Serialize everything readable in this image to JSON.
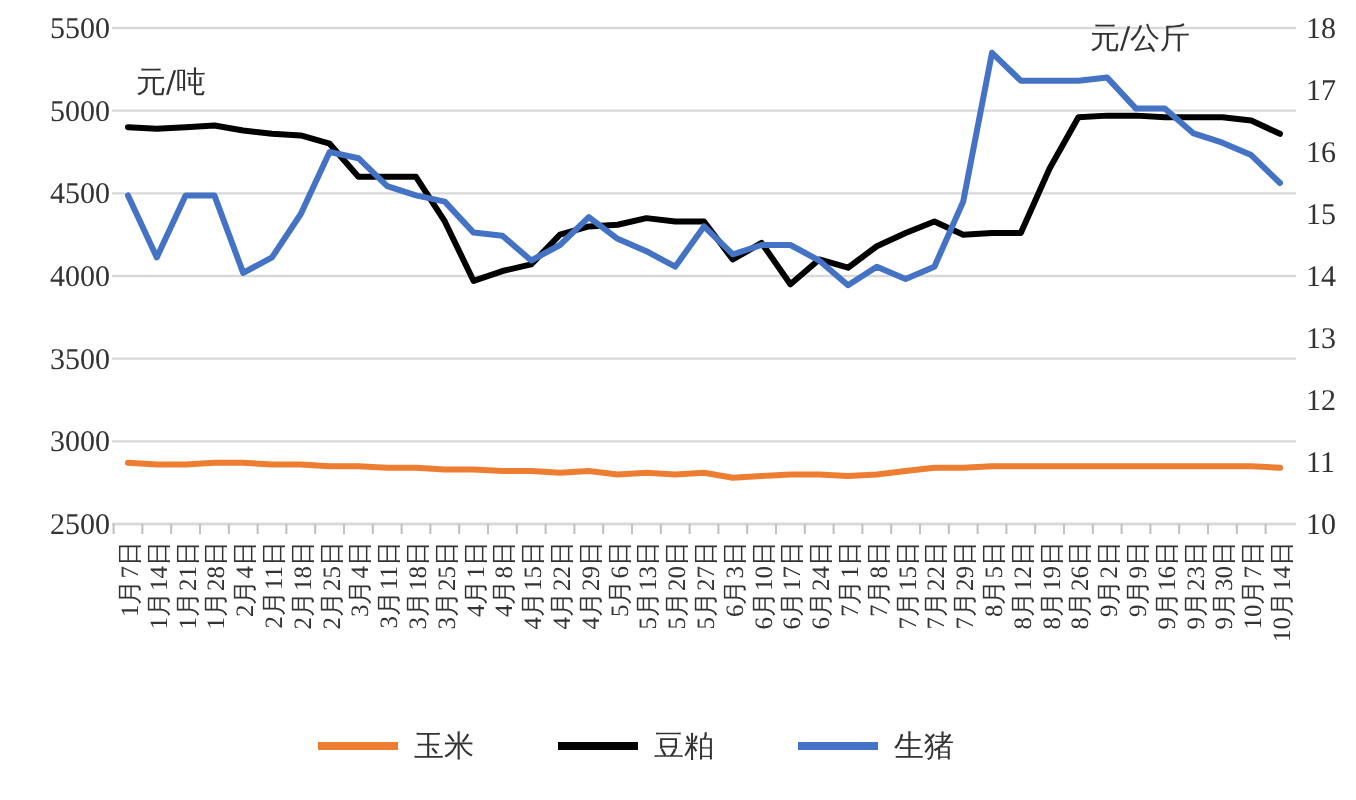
{
  "chart_data": {
    "type": "line",
    "ylabel": "元/吨",
    "y2label": "元/公斤",
    "categories": [
      "1月7日",
      "1月14日",
      "1月21日",
      "1月28日",
      "2月4日",
      "2月11日",
      "2月18日",
      "2月25日",
      "3月4日",
      "3月11日",
      "3月18日",
      "3月25日",
      "4月1日",
      "4月8日",
      "4月15日",
      "4月22日",
      "4月29日",
      "5月6日",
      "5月13日",
      "5月20日",
      "5月27日",
      "6月3日",
      "6月10日",
      "6月17日",
      "6月24日",
      "7月1日",
      "7月8日",
      "7月15日",
      "7月22日",
      "7月29日",
      "8月5日",
      "8月12日",
      "8月19日",
      "8月26日",
      "9月2日",
      "9月9日",
      "9月16日",
      "9月23日",
      "9月30日",
      "10月7日",
      "10月14日"
    ],
    "series": [
      {
        "name": "玉米",
        "color": "#ed7d31",
        "values": [
          2870,
          2860,
          2860,
          2870,
          2870,
          2860,
          2860,
          2850,
          2850,
          2840,
          2840,
          2830,
          2830,
          2820,
          2820,
          2810,
          2820,
          2800,
          2810,
          2800,
          2810,
          2780,
          2790,
          2800,
          2800,
          2790,
          2800,
          2820,
          2840,
          2840,
          2850,
          2850,
          2850,
          2850,
          2850,
          2850,
          2850,
          2850,
          2850,
          2850,
          2840
        ]
      },
      {
        "name": "豆粕",
        "color": "#000000",
        "values": [
          4900,
          4890,
          4900,
          4910,
          4880,
          4860,
          4850,
          4800,
          4600,
          4600,
          4600,
          4330,
          3970,
          4030,
          4070,
          4250,
          4300,
          4310,
          4350,
          4330,
          4330,
          4100,
          4200,
          3950,
          4100,
          4050,
          4180,
          4260,
          4330,
          4250,
          4260,
          4260,
          4650,
          4960,
          4970,
          4970,
          4960,
          4960,
          4960,
          4940,
          4860
        ]
      },
      {
        "name": "生猪",
        "color": "#4472c4",
        "axis": "y2",
        "values": [
          15.3,
          14.3,
          15.3,
          15.3,
          14.05,
          14.3,
          15.0,
          16.0,
          15.9,
          15.45,
          15.3,
          15.2,
          14.7,
          14.65,
          14.25,
          14.5,
          14.95,
          14.6,
          14.4,
          14.15,
          14.8,
          14.35,
          14.5,
          14.5,
          14.25,
          13.85,
          14.15,
          13.95,
          14.15,
          15.2,
          17.6,
          17.15,
          17.15,
          17.15,
          17.2,
          16.7,
          16.7,
          16.3,
          16.15,
          15.95,
          15.5
        ]
      }
    ],
    "ylim": [
      2500,
      5500
    ],
    "yticks": [
      2500,
      3000,
      3500,
      4000,
      4500,
      5000,
      5500
    ],
    "y2lim": [
      10,
      18
    ],
    "y2ticks": [
      10,
      11,
      12,
      13,
      14,
      15,
      16,
      17,
      18
    ],
    "grid": "y",
    "legend": "bottom"
  }
}
